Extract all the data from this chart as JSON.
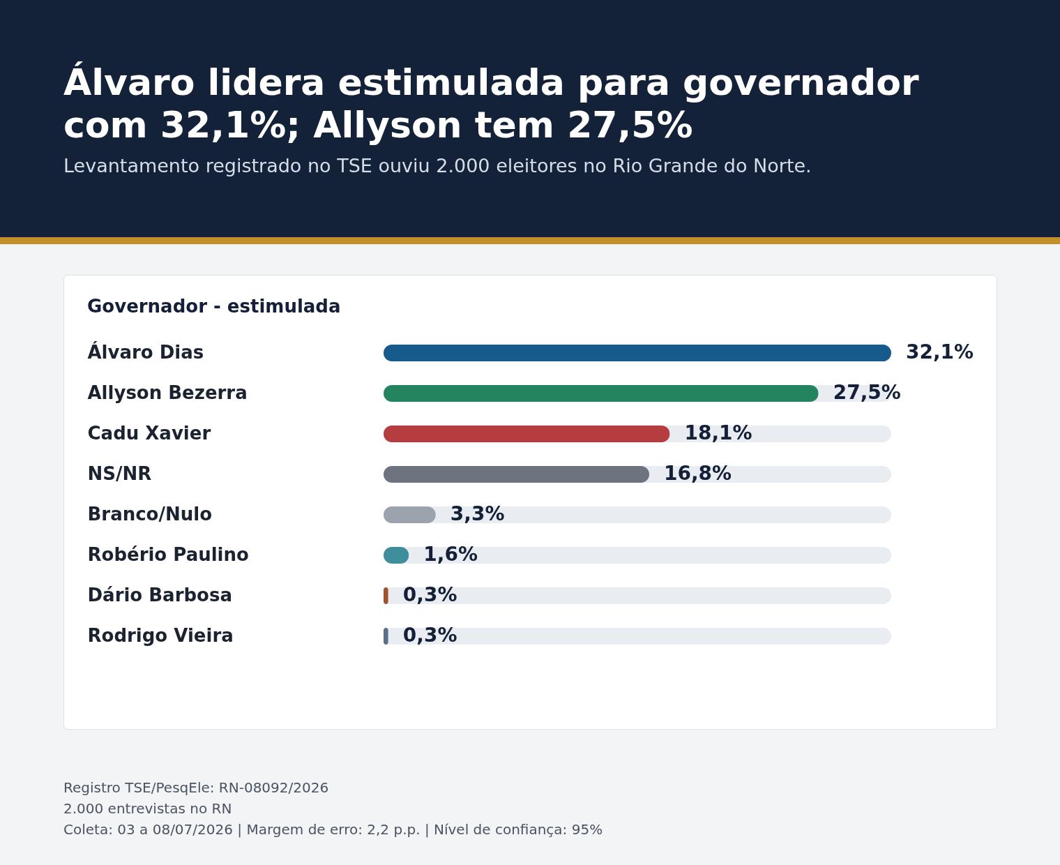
{
  "chart_data": {
    "type": "bar",
    "orientation": "horizontal",
    "title": "Álvaro lidera estimulada para governador com 32,1%; Allyson tem 27,5%",
    "subtitle": "Levantamento registrado no TSE ouviu 2.000 eleitores no Rio Grande do Norte.",
    "categories": [
      "Álvaro Dias",
      "Allyson Bezerra",
      "Cadu Xavier",
      "NS/NR",
      "Branco/Nulo",
      "Robério Paulino",
      "Dário Barbosa",
      "Rodrigo Vieira"
    ],
    "values": [
      32.1,
      27.5,
      18.1,
      16.8,
      3.3,
      1.6,
      0.3,
      0.3
    ],
    "colors": [
      "#175a8c",
      "#23845f",
      "#b53d3f",
      "#6e7380",
      "#9aa3ae",
      "#3f8e9b",
      "#a0542c",
      "#5b6f88"
    ],
    "value_labels": [
      "32,1%",
      "27,5%",
      "18,1%",
      "16,8%",
      "3,3%",
      "1,6%",
      "0,3%",
      "0,3%"
    ],
    "annotations": [
      "Governador - estimulada",
      "Registro TSE/PesqEle: RN-08092/2026",
      "2.000 entrevistas no RN",
      "Coleta: 03 a 08/07/2026 | Margem de erro: 2,2 p.p. | Nível de confiança: 95%"
    ]
  }
}
